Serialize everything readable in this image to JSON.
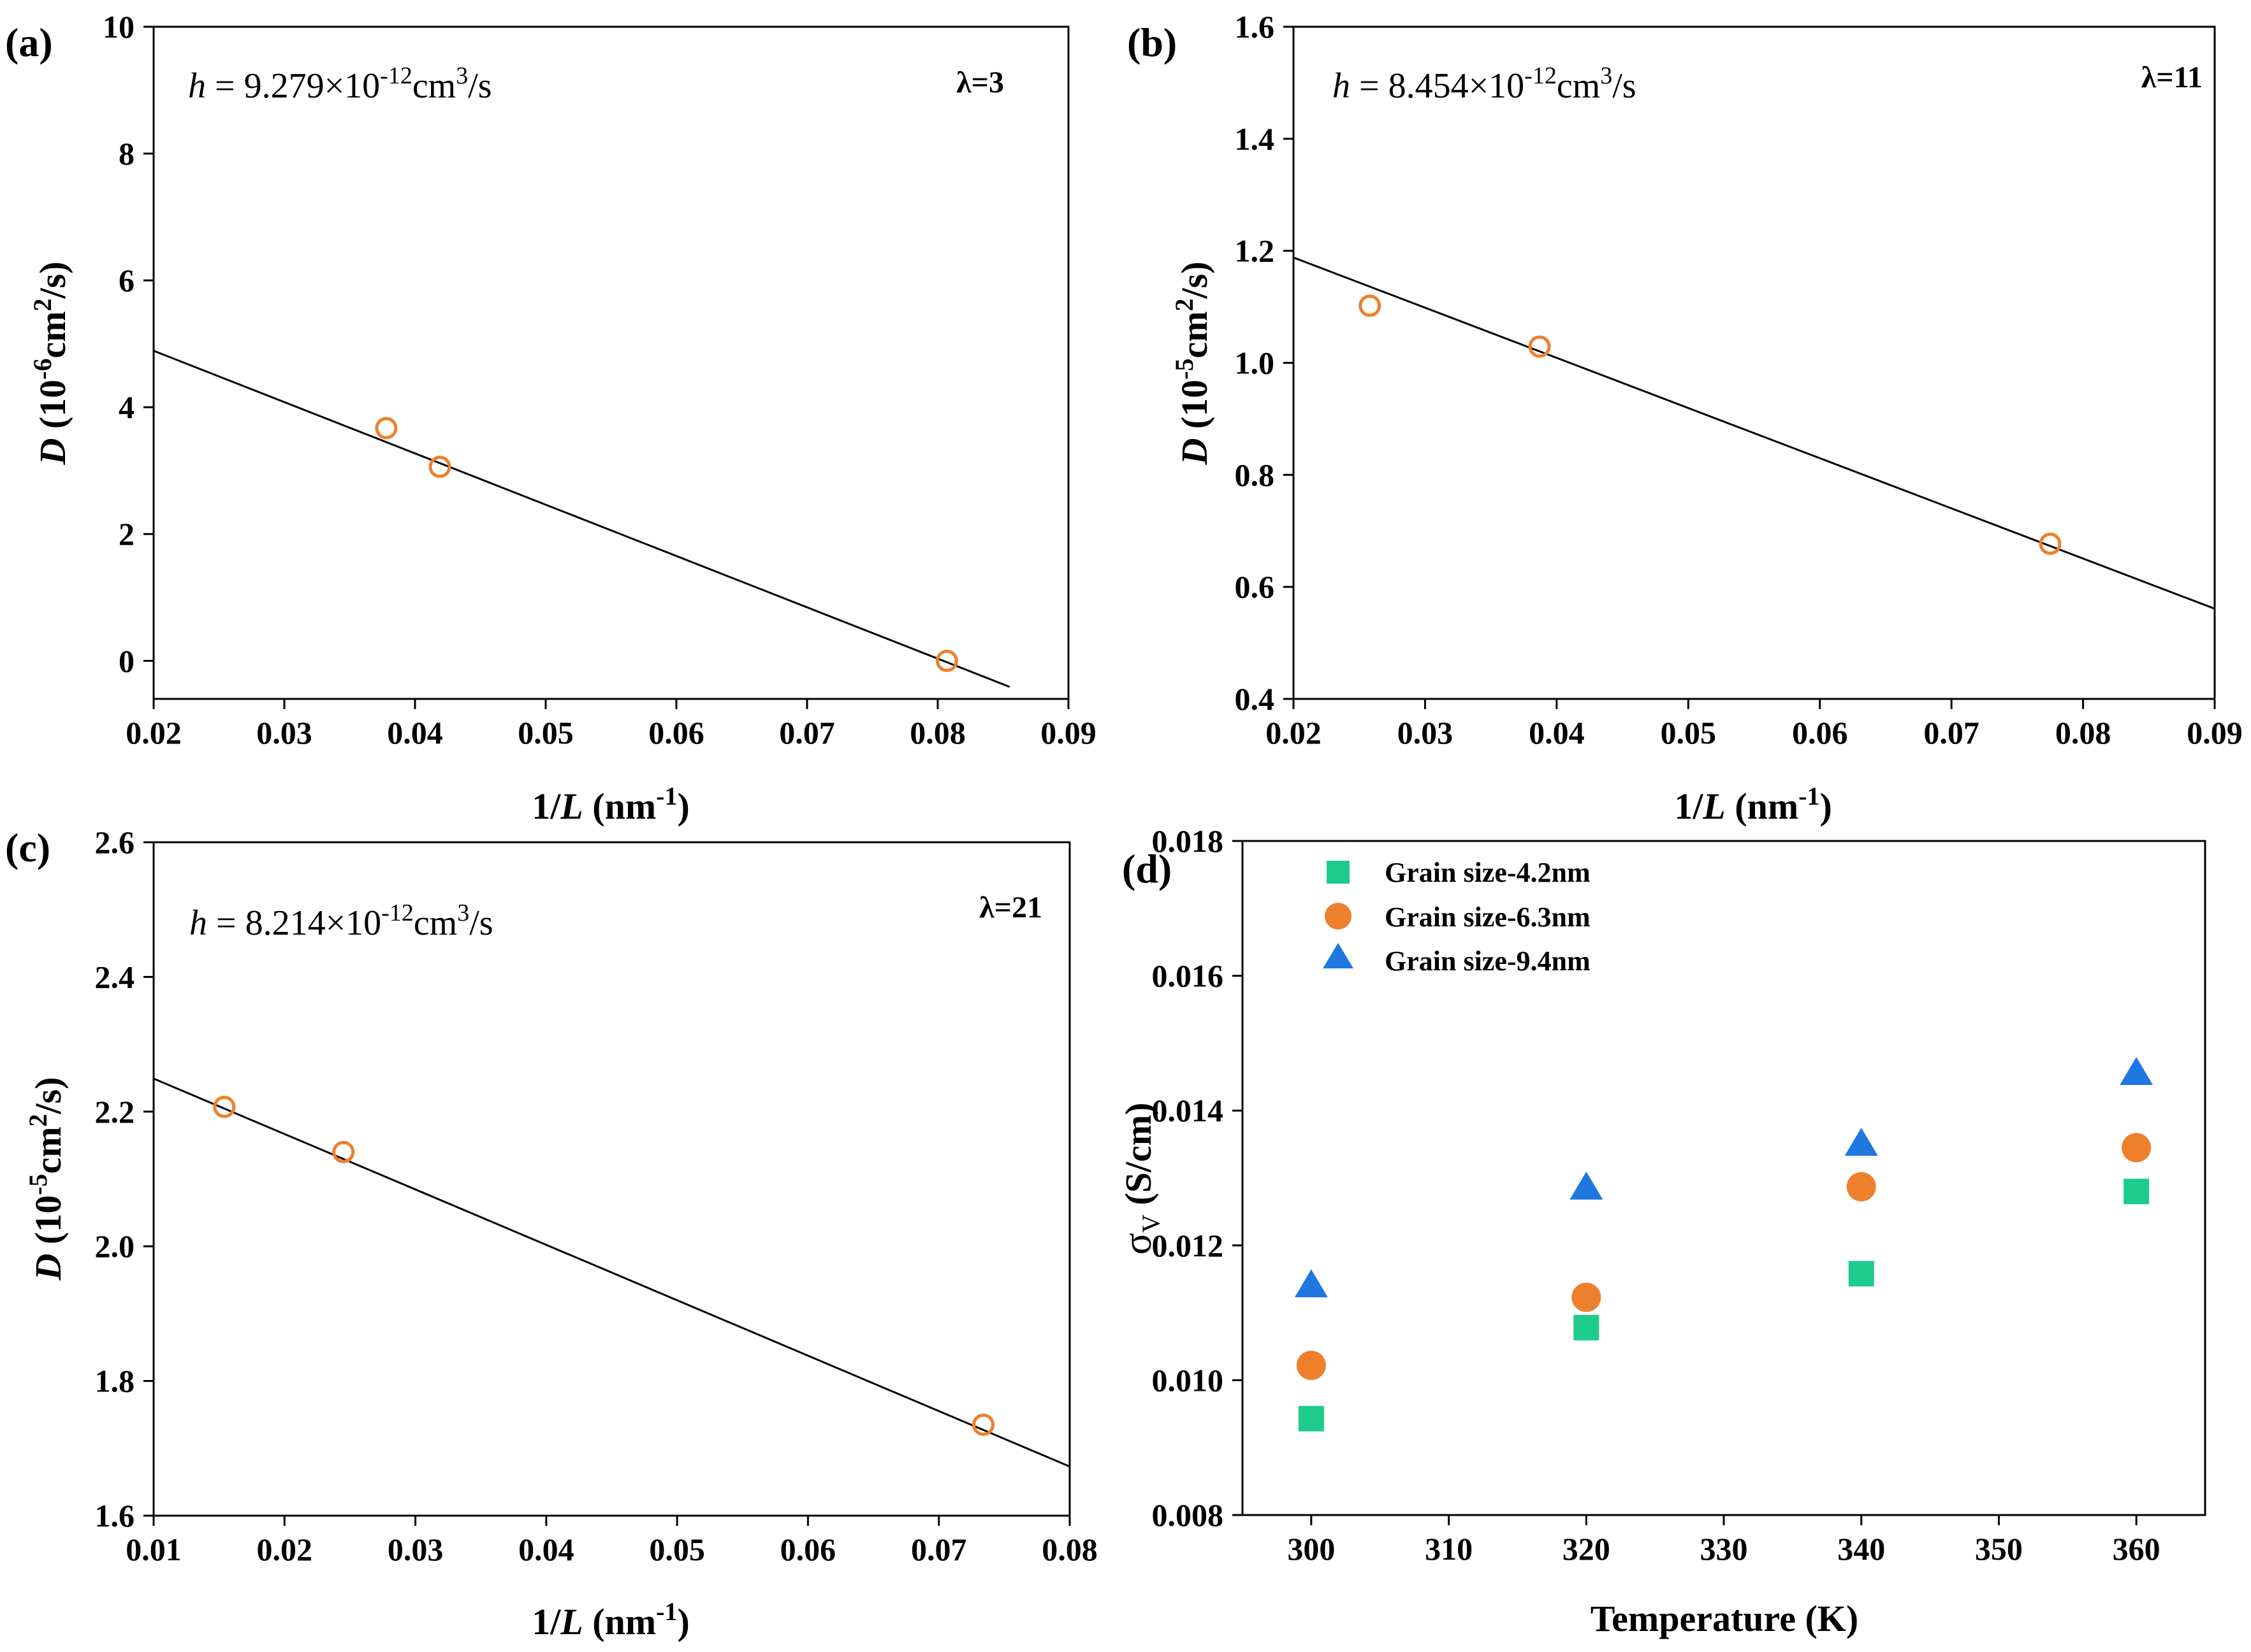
{
  "colors": {
    "marker": "#ee7f2d",
    "green": "#1dcc8c",
    "orange": "#ee7f2d",
    "blue": "#1f77e0"
  },
  "chart_data": [
    {
      "id": "a",
      "type": "scatter",
      "panel_label": "(a)",
      "xlabel_pre": "1/",
      "xlabel_var": "L",
      "xlabel_post": " (nm",
      "xlabel_sup": "-1",
      "xlabel_end": ")",
      "ylabel_var": "D",
      "ylabel_pre": " (10",
      "ylabel_exp": "-6",
      "ylabel_mid": "cm",
      "ylabel_sup": "2",
      "ylabel_end": "/s)",
      "xlim": [
        0.02,
        0.09
      ],
      "ylim": [
        -0.6,
        10
      ],
      "xticks": [
        0.02,
        0.03,
        0.04,
        0.05,
        0.06,
        0.07,
        0.08,
        0.09
      ],
      "xtick_labels": [
        "0.02",
        "0.03",
        "0.04",
        "0.05",
        "0.06",
        "0.07",
        "0.08",
        "0.09"
      ],
      "yticks": [
        0,
        2,
        4,
        6,
        8,
        10
      ],
      "ytick_labels": [
        "0",
        "2",
        "4",
        "6",
        "8",
        "10"
      ],
      "points": {
        "x": [
          0.0378,
          0.0419,
          0.0807
        ],
        "y": [
          3.67,
          3.06,
          0.0
        ]
      },
      "fit_line": {
        "x": [
          0.02,
          0.0855
        ],
        "y": [
          4.89,
          -0.41
        ]
      },
      "annotation": {
        "var": "h",
        "text": " = 9.279×10",
        "exp": "-12",
        "unit": "cm",
        "unit_sup": "3",
        "unit_end": "/s"
      },
      "lambda_label": "λ=3"
    },
    {
      "id": "b",
      "type": "scatter",
      "panel_label": "(b)",
      "xlabel_pre": "1/",
      "xlabel_var": "L",
      "xlabel_post": " (nm",
      "xlabel_sup": "-1",
      "xlabel_end": ")",
      "ylabel_var": "D",
      "ylabel_pre": " (10",
      "ylabel_exp": "-5",
      "ylabel_mid": "cm",
      "ylabel_sup": "2",
      "ylabel_end": "/s)",
      "xlim": [
        0.02,
        0.09
      ],
      "ylim": [
        0.4,
        1.6
      ],
      "xticks": [
        0.02,
        0.03,
        0.04,
        0.05,
        0.06,
        0.07,
        0.08,
        0.09
      ],
      "xtick_labels": [
        "0.02",
        "0.03",
        "0.04",
        "0.05",
        "0.06",
        "0.07",
        "0.08",
        "0.09"
      ],
      "yticks": [
        0.4,
        0.6,
        0.8,
        1.0,
        1.2,
        1.4,
        1.6
      ],
      "ytick_labels": [
        "0.4",
        "0.6",
        "0.8",
        "1.0",
        "1.2",
        "1.4",
        "1.6"
      ],
      "points": {
        "x": [
          0.0258,
          0.0387,
          0.0775
        ],
        "y": [
          1.102,
          1.029,
          0.677
        ]
      },
      "fit_line": {
        "x": [
          0.02,
          0.09
        ],
        "y": [
          1.188,
          0.561
        ]
      },
      "annotation": {
        "var": "h",
        "text": "  = 8.454×10",
        "exp": "-12",
        "unit": "cm",
        "unit_sup": "3",
        "unit_end": "/s"
      },
      "lambda_label": "λ=11"
    },
    {
      "id": "c",
      "type": "scatter",
      "panel_label": "(c)",
      "xlabel_pre": "1/",
      "xlabel_var": "L",
      "xlabel_post": " (nm",
      "xlabel_sup": "-1",
      "xlabel_end": ")",
      "ylabel_var": "D",
      "ylabel_pre": " (10",
      "ylabel_exp": "-5",
      "ylabel_mid": "cm",
      "ylabel_sup": "2",
      "ylabel_end": "/s)",
      "xlim": [
        0.01,
        0.08
      ],
      "ylim": [
        1.6,
        2.6
      ],
      "xticks": [
        0.01,
        0.02,
        0.03,
        0.04,
        0.05,
        0.06,
        0.07,
        0.08
      ],
      "xtick_labels": [
        "0.01",
        "0.02",
        "0.03",
        "0.04",
        "0.05",
        "0.06",
        "0.07",
        "0.08"
      ],
      "yticks": [
        1.6,
        1.8,
        2.0,
        2.2,
        2.4,
        2.6
      ],
      "ytick_labels": [
        "1.6",
        "1.8",
        "2.0",
        "2.2",
        "2.4",
        "2.6"
      ],
      "points": {
        "x": [
          0.0154,
          0.0245,
          0.0734
        ],
        "y": [
          2.207,
          2.14,
          1.735
        ]
      },
      "fit_line": {
        "x": [
          0.01,
          0.08
        ],
        "y": [
          2.249,
          1.673
        ]
      },
      "annotation": {
        "var": "h",
        "text": " = 8.214×10",
        "exp": "-12",
        "unit": "cm",
        "unit_sup": "3",
        "unit_end": "/s"
      },
      "lambda_label": "λ=21"
    },
    {
      "id": "d",
      "type": "scatter",
      "panel_label": "(d)",
      "xlabel": "Temperature (K)",
      "ylabel_sigma": "σ",
      "ylabel_sub": "V",
      "ylabel_end": " (S/cm)",
      "xlim": [
        295,
        365
      ],
      "ylim": [
        0.008,
        0.018
      ],
      "xticks": [
        300,
        310,
        320,
        330,
        340,
        350,
        360
      ],
      "xtick_labels": [
        "300",
        "310",
        "320",
        "330",
        "340",
        "350",
        "360"
      ],
      "yticks": [
        0.008,
        0.01,
        0.012,
        0.014,
        0.016,
        0.018
      ],
      "ytick_labels": [
        "0.008",
        "0.010",
        "0.012",
        "0.014",
        "0.016",
        "0.018"
      ],
      "x": [
        300,
        320,
        340,
        360
      ],
      "series": [
        {
          "name": "Grain size-4.2nm",
          "marker": "square",
          "color": "#1dcc8c",
          "values": [
            0.00943,
            0.01078,
            0.01158,
            0.0128
          ]
        },
        {
          "name": "Grain size-6.3nm",
          "marker": "circle",
          "color": "#ee7f2d",
          "values": [
            0.01022,
            0.01123,
            0.01287,
            0.01345
          ]
        },
        {
          "name": "Grain size-9.4nm",
          "marker": "triangle",
          "color": "#1f77e0",
          "values": [
            0.0114,
            0.01285,
            0.0135,
            0.01455
          ]
        }
      ],
      "legend_position": "top-left"
    }
  ]
}
